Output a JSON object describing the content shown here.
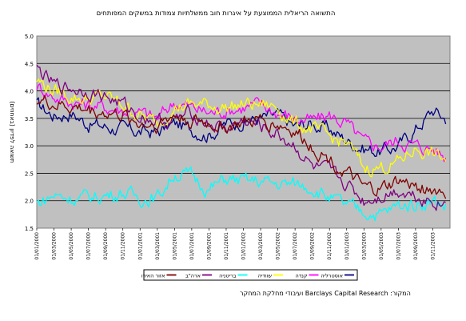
{
  "source_note": "המקור: Barclays Capital Research ועיבודי מחלקת המחקר",
  "chart_data": {
    "type": "line",
    "title": "התשואה הריאלית הממוצעת על איגרות חוב ממשלתיות צמודות במשקים המפותחים",
    "ylabel": "(תשואה לפדיון (באחוזים",
    "xlabel": "",
    "ylim": [
      1.5,
      5.0
    ],
    "yticks": [
      "1.5",
      "2.0",
      "2.5",
      "3.0",
      "3.5",
      "4.0",
      "4.5",
      "5.0"
    ],
    "xticks": [
      "01/01/2000",
      "01/03/2000",
      "01/05/2000",
      "01/07/2000",
      "01/09/2000",
      "01/11/2000",
      "01/01/2001",
      "01/03/2001",
      "01/05/2001",
      "01/07/2001",
      "01/09/2001",
      "01/11/2001",
      "01/01/2002",
      "01/03/2002",
      "01/05/2002",
      "01/07/2002",
      "01/09/2002",
      "01/11/2002",
      "01/01/2003",
      "01/03/2003",
      "01/05/2003",
      "01/07/2003",
      "01/09/2003",
      "01/11/2003"
    ],
    "x": [
      0,
      2,
      4,
      6,
      8,
      10,
      12,
      14,
      16,
      18,
      20,
      22,
      24,
      26,
      28,
      30,
      32,
      34,
      36,
      38,
      40,
      42,
      44,
      46,
      47.5
    ],
    "grid": "horizontal",
    "legend_position": "bottom",
    "series": [
      {
        "name": "אוסטרליה",
        "color": "#000080",
        "values": [
          3.75,
          3.55,
          3.6,
          3.4,
          3.35,
          3.3,
          3.25,
          3.25,
          3.4,
          3.3,
          3.2,
          3.4,
          3.45,
          3.5,
          3.55,
          3.35,
          3.4,
          3.3,
          3.1,
          2.95,
          2.9,
          3.0,
          3.3,
          3.65,
          3.5
        ]
      },
      {
        "name": "קנדה",
        "color": "#ff00ff",
        "values": [
          4.1,
          3.9,
          3.8,
          3.75,
          3.7,
          3.65,
          3.6,
          3.5,
          3.8,
          3.7,
          3.6,
          3.65,
          3.7,
          3.75,
          3.6,
          3.5,
          3.45,
          3.55,
          3.4,
          3.05,
          3.0,
          3.1,
          3.0,
          2.95,
          2.8
        ]
      },
      {
        "name": "שוודיה",
        "color": "#ffff00",
        "values": [
          4.2,
          4.0,
          3.9,
          3.85,
          3.9,
          3.75,
          3.55,
          3.4,
          3.7,
          3.75,
          3.75,
          3.7,
          3.75,
          3.75,
          3.7,
          3.4,
          3.3,
          3.15,
          3.05,
          2.6,
          2.6,
          2.7,
          2.95,
          2.85,
          2.75
        ]
      },
      {
        "name": "בריטניה",
        "color": "#00ffff",
        "values": [
          1.95,
          2.1,
          2.05,
          2.05,
          2.1,
          2.15,
          2.05,
          2.05,
          2.5,
          2.45,
          2.2,
          2.4,
          2.35,
          2.35,
          2.3,
          2.3,
          2.25,
          2.05,
          1.9,
          1.8,
          1.75,
          1.9,
          1.95,
          2.0,
          1.9
        ]
      },
      {
        "name": "ארה\"ב",
        "color": "#800080",
        "values": [
          4.4,
          4.1,
          4.05,
          4.0,
          3.9,
          3.75,
          3.55,
          3.45,
          3.45,
          3.6,
          3.4,
          3.3,
          3.45,
          3.35,
          3.2,
          3.0,
          2.6,
          2.5,
          2.3,
          2.0,
          2.1,
          2.2,
          2.1,
          2.0,
          1.95
        ]
      },
      {
        "name": "אזור האירו",
        "color": "#800000",
        "values": [
          3.85,
          3.75,
          3.7,
          3.65,
          3.6,
          3.55,
          3.4,
          3.4,
          3.55,
          3.45,
          3.4,
          3.35,
          3.4,
          3.45,
          3.4,
          3.25,
          3.0,
          2.75,
          2.5,
          2.2,
          2.2,
          2.35,
          2.25,
          2.2,
          2.15
        ]
      }
    ]
  }
}
